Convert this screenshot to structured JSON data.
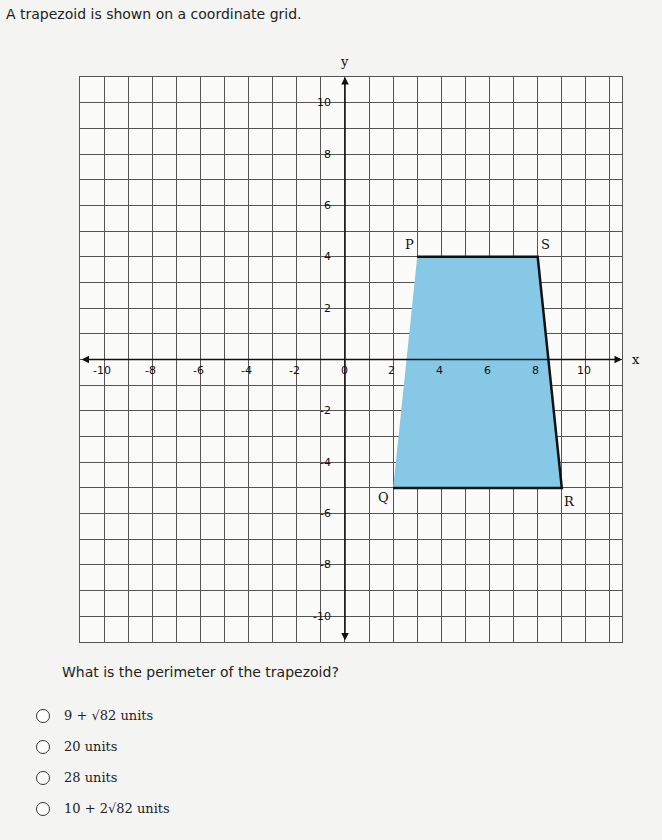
{
  "header": "A trapezoid is shown on a coordinate grid.",
  "chart_data": {
    "type": "polygon",
    "x": [
      3,
      8,
      9,
      2
    ],
    "y": [
      4,
      4,
      -5,
      -5
    ],
    "point_labels": [
      "P",
      "S",
      "R",
      "Q"
    ],
    "color": "#86c8e6",
    "x_label": "x",
    "y_label": "y",
    "xlim": [
      -11,
      11.5
    ],
    "ylim": [
      -11,
      11
    ],
    "xticks": [
      -10,
      -8,
      -6,
      -4,
      -2,
      0,
      2,
      4,
      6,
      8,
      10
    ],
    "yticks": [
      -10,
      -8,
      -6,
      -4,
      -2,
      2,
      4,
      6,
      8,
      10
    ],
    "grid": true
  },
  "question": "What is the perimeter of the trapezoid?",
  "options": [
    "9 + √82 units",
    "20 units",
    "28 units",
    "10 + 2√82 units"
  ]
}
